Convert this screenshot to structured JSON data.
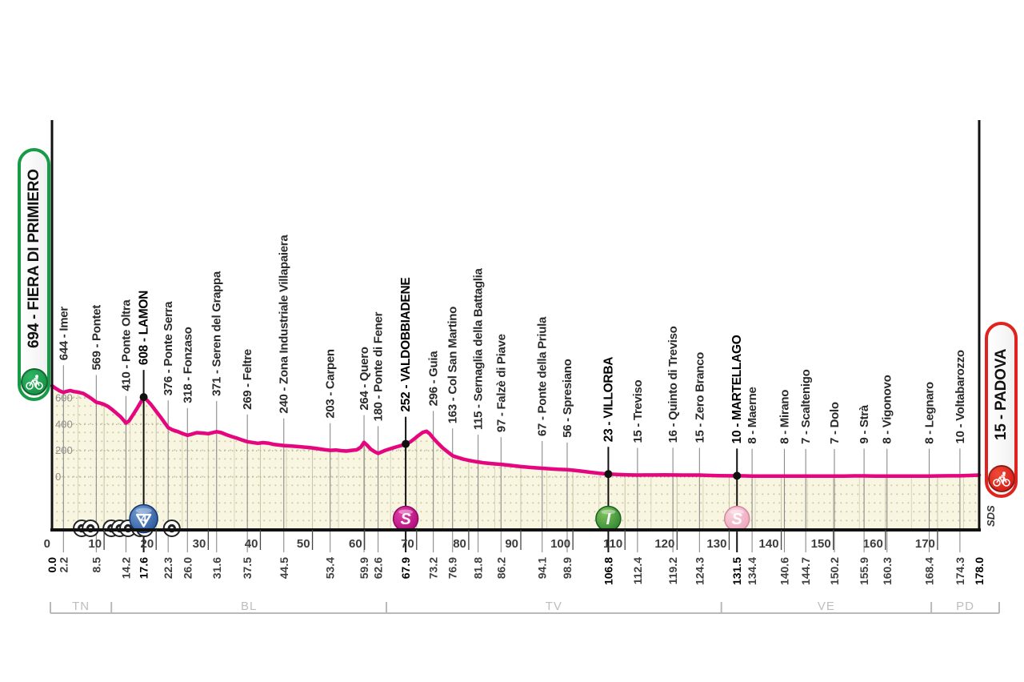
{
  "chart_data": {
    "type": "area",
    "description": "Cycling stage altimetry profile",
    "total_km": 178.0,
    "start": {
      "label": "694 - FIERA DI PRIMIERO",
      "elevation": 694,
      "name": "FIERA DI PRIMIERO"
    },
    "finish": {
      "label": "15 - PADOVA",
      "elevation": 15,
      "name": "PADOVA"
    },
    "signature": "SDS",
    "colors": {
      "profile_line": "#e5057e",
      "area_fill": "#f8f6e0",
      "start_accent": "#169b47",
      "finish_accent": "#e0231c",
      "axis": "#111111",
      "muted": "#8a8a8a"
    },
    "y_axis": {
      "unit": "m",
      "ticks": [
        0,
        200,
        400,
        600
      ]
    },
    "x_axis": {
      "unit": "km",
      "major_ticks": [
        0,
        10,
        20,
        30,
        40,
        50,
        60,
        70,
        80,
        90,
        100,
        110,
        120,
        130,
        140,
        150,
        160,
        170
      ]
    },
    "legend_position": "none",
    "grid": true,
    "waypoints": [
      {
        "km": 2.2,
        "elevation": 644,
        "name": "644 - Imer",
        "bold": false
      },
      {
        "km": 8.5,
        "elevation": 569,
        "name": "569 - Pontet",
        "bold": false
      },
      {
        "km": 14.2,
        "elevation": 410,
        "name": "410 - Ponte Oltra",
        "bold": false
      },
      {
        "km": 17.6,
        "elevation": 608,
        "name": "608 - LAMON",
        "bold": true,
        "badge": "climb-cat4"
      },
      {
        "km": 22.3,
        "elevation": 376,
        "name": "376 - Ponte Serra",
        "bold": false
      },
      {
        "km": 26.0,
        "elevation": 318,
        "name": "318 - Fonzaso",
        "bold": false
      },
      {
        "km": 31.6,
        "elevation": 371,
        "name": "371 - Seren del Grappa",
        "bold": false
      },
      {
        "km": 37.5,
        "elevation": 269,
        "name": "269 - Feltre",
        "bold": false
      },
      {
        "km": 44.5,
        "elevation": 240,
        "name": "240 - Zona Industriale Villapaiera",
        "bold": false
      },
      {
        "km": 53.4,
        "elevation": 203,
        "name": "203 - Carpen",
        "bold": false
      },
      {
        "km": 59.9,
        "elevation": 264,
        "name": "264 - Quero",
        "bold": false
      },
      {
        "km": 62.6,
        "elevation": 180,
        "name": "180 - Ponte di Fener",
        "bold": false
      },
      {
        "km": 67.9,
        "elevation": 252,
        "name": "252 - VALDOBBIADENE",
        "bold": true,
        "badge": "sprint-magenta"
      },
      {
        "km": 73.2,
        "elevation": 296,
        "name": "296 - Guia",
        "bold": false
      },
      {
        "km": 76.9,
        "elevation": 163,
        "name": "163 - Col San Martino",
        "bold": false
      },
      {
        "km": 81.8,
        "elevation": 115,
        "name": "115 - Sernaglia della Battaglia",
        "bold": false
      },
      {
        "km": 86.2,
        "elevation": 97,
        "name": "97 - Falzè di Piave",
        "bold": false
      },
      {
        "km": 94.1,
        "elevation": 67,
        "name": "67 - Ponte della Priula",
        "bold": false
      },
      {
        "km": 98.9,
        "elevation": 56,
        "name": "56 - Spresiano",
        "bold": false
      },
      {
        "km": 106.8,
        "elevation": 23,
        "name": "23 - VILLORBA",
        "bold": true,
        "badge": "intergiro-green"
      },
      {
        "km": 112.4,
        "elevation": 15,
        "name": "15 - Treviso",
        "bold": false
      },
      {
        "km": 119.2,
        "elevation": 16,
        "name": "16 - Quinto di Treviso",
        "bold": false
      },
      {
        "km": 124.3,
        "elevation": 15,
        "name": "15 - Zero Branco",
        "bold": false
      },
      {
        "km": 131.5,
        "elevation": 10,
        "name": "10 - MARTELLAGO",
        "bold": true,
        "badge": "sprint-pink"
      },
      {
        "km": 134.4,
        "elevation": 8,
        "name": "8 - Maerne",
        "bold": false
      },
      {
        "km": 140.6,
        "elevation": 8,
        "name": "8 - Mirano",
        "bold": false
      },
      {
        "km": 144.7,
        "elevation": 7,
        "name": "7 - Scaltenigo",
        "bold": false
      },
      {
        "km": 150.2,
        "elevation": 7,
        "name": "7 - Dolo",
        "bold": false
      },
      {
        "km": 155.9,
        "elevation": 9,
        "name": "9 - Strà",
        "bold": false
      },
      {
        "km": 160.3,
        "elevation": 8,
        "name": "8 - Vigonovo",
        "bold": false
      },
      {
        "km": 168.4,
        "elevation": 8,
        "name": "8 - Legnaro",
        "bold": false
      },
      {
        "km": 174.3,
        "elevation": 10,
        "name": "10 - Voltabarozzo",
        "bold": false
      }
    ],
    "km_labels": [
      {
        "km": 0.0,
        "bold": true
      },
      {
        "km": 2.2,
        "bold": false
      },
      {
        "km": 8.5,
        "bold": false
      },
      {
        "km": 14.2,
        "bold": false
      },
      {
        "km": 17.6,
        "bold": true
      },
      {
        "km": 22.3,
        "bold": false
      },
      {
        "km": 26.0,
        "bold": false
      },
      {
        "km": 31.6,
        "bold": false
      },
      {
        "km": 37.5,
        "bold": false
      },
      {
        "km": 44.5,
        "bold": false
      },
      {
        "km": 53.4,
        "bold": false
      },
      {
        "km": 59.9,
        "bold": false
      },
      {
        "km": 62.6,
        "bold": false
      },
      {
        "km": 67.9,
        "bold": true
      },
      {
        "km": 73.2,
        "bold": false
      },
      {
        "km": 76.9,
        "bold": false
      },
      {
        "km": 81.8,
        "bold": false
      },
      {
        "km": 86.2,
        "bold": false
      },
      {
        "km": 94.1,
        "bold": false
      },
      {
        "km": 98.9,
        "bold": false
      },
      {
        "km": 106.8,
        "bold": true
      },
      {
        "km": 112.4,
        "bold": false
      },
      {
        "km": 119.2,
        "bold": false
      },
      {
        "km": 124.3,
        "bold": false
      },
      {
        "km": 131.5,
        "bold": true
      },
      {
        "km": 134.4,
        "bold": false
      },
      {
        "km": 140.6,
        "bold": false
      },
      {
        "km": 144.7,
        "bold": false
      },
      {
        "km": 150.2,
        "bold": false
      },
      {
        "km": 155.9,
        "bold": false
      },
      {
        "km": 160.3,
        "bold": false
      },
      {
        "km": 168.4,
        "bold": false
      },
      {
        "km": 174.3,
        "bold": false
      },
      {
        "km": 178.0,
        "bold": true
      }
    ],
    "provinces": [
      {
        "label": "TN",
        "from_km": 0,
        "to_km": 11.4
      },
      {
        "label": "BL",
        "from_km": 11.4,
        "to_km": 64.2
      },
      {
        "label": "TV",
        "from_km": 64.2,
        "to_km": 128.5
      },
      {
        "label": "VE",
        "from_km": 128.5,
        "to_km": 168.8
      },
      {
        "label": "PD",
        "from_km": 168.8,
        "to_km": 178.0
      }
    ],
    "tunnels_km": [
      5.7,
      7.4,
      11.4,
      13.0,
      14.6,
      16.9,
      17.8,
      23.0
    ],
    "profile": [
      [
        0,
        694
      ],
      [
        0.8,
        672
      ],
      [
        1.5,
        655
      ],
      [
        2.2,
        644
      ],
      [
        2.8,
        652
      ],
      [
        3.5,
        658
      ],
      [
        4.2,
        650
      ],
      [
        5,
        646
      ],
      [
        6,
        636
      ],
      [
        7,
        612
      ],
      [
        7.8,
        590
      ],
      [
        8.5,
        569
      ],
      [
        9.3,
        562
      ],
      [
        10,
        552
      ],
      [
        10.8,
        536
      ],
      [
        11.5,
        515
      ],
      [
        12.3,
        488
      ],
      [
        13.2,
        458
      ],
      [
        14.2,
        410
      ],
      [
        14.8,
        428
      ],
      [
        15.5,
        470
      ],
      [
        16.3,
        520
      ],
      [
        17,
        568
      ],
      [
        17.6,
        608
      ],
      [
        18.3,
        582
      ],
      [
        19,
        552
      ],
      [
        20,
        500
      ],
      [
        21,
        448
      ],
      [
        22.3,
        376
      ],
      [
        23.2,
        358
      ],
      [
        24.2,
        345
      ],
      [
        25,
        332
      ],
      [
        26,
        318
      ],
      [
        26.8,
        326
      ],
      [
        27.8,
        338
      ],
      [
        29,
        334
      ],
      [
        30,
        330
      ],
      [
        31.6,
        345
      ],
      [
        32.5,
        338
      ],
      [
        33.5,
        322
      ],
      [
        34.5,
        308
      ],
      [
        35.5,
        296
      ],
      [
        36.5,
        282
      ],
      [
        37.5,
        269
      ],
      [
        38.5,
        263
      ],
      [
        39.5,
        257
      ],
      [
        40.5,
        262
      ],
      [
        41.5,
        258
      ],
      [
        42.5,
        249
      ],
      [
        43.5,
        244
      ],
      [
        44.5,
        240
      ],
      [
        46,
        236
      ],
      [
        47.5,
        231
      ],
      [
        49,
        226
      ],
      [
        50.5,
        219
      ],
      [
        52,
        210
      ],
      [
        53.4,
        203
      ],
      [
        54.5,
        206
      ],
      [
        55.5,
        201
      ],
      [
        56.5,
        198
      ],
      [
        57.5,
        203
      ],
      [
        58.5,
        207
      ],
      [
        59.3,
        228
      ],
      [
        59.9,
        264
      ],
      [
        60.5,
        242
      ],
      [
        61.2,
        212
      ],
      [
        62,
        192
      ],
      [
        62.6,
        180
      ],
      [
        63.3,
        192
      ],
      [
        64,
        203
      ],
      [
        65,
        216
      ],
      [
        66,
        228
      ],
      [
        67,
        240
      ],
      [
        67.9,
        252
      ],
      [
        68.8,
        268
      ],
      [
        69.6,
        292
      ],
      [
        70.4,
        318
      ],
      [
        71.2,
        340
      ],
      [
        71.9,
        348
      ],
      [
        72.5,
        330
      ],
      [
        73.2,
        296
      ],
      [
        74,
        262
      ],
      [
        75,
        222
      ],
      [
        76,
        190
      ],
      [
        76.9,
        163
      ],
      [
        78,
        148
      ],
      [
        79,
        136
      ],
      [
        80,
        127
      ],
      [
        81,
        120
      ],
      [
        81.8,
        115
      ],
      [
        83,
        108
      ],
      [
        84.5,
        102
      ],
      [
        86.2,
        97
      ],
      [
        88,
        89
      ],
      [
        90,
        80
      ],
      [
        92,
        73
      ],
      [
        94.1,
        67
      ],
      [
        95.5,
        63
      ],
      [
        97,
        59
      ],
      [
        98.9,
        56
      ],
      [
        100.5,
        50
      ],
      [
        102,
        43
      ],
      [
        103.5,
        36
      ],
      [
        105,
        29
      ],
      [
        106.8,
        23
      ],
      [
        108.5,
        20
      ],
      [
        110.5,
        17
      ],
      [
        112.4,
        15
      ],
      [
        114,
        16
      ],
      [
        116,
        16
      ],
      [
        117.5,
        17
      ],
      [
        119.2,
        16
      ],
      [
        121,
        15
      ],
      [
        122.5,
        15
      ],
      [
        124.3,
        15
      ],
      [
        126,
        13
      ],
      [
        128,
        11
      ],
      [
        130,
        10
      ],
      [
        131.5,
        10
      ],
      [
        133,
        9
      ],
      [
        134.4,
        8
      ],
      [
        136.5,
        8
      ],
      [
        138.5,
        8
      ],
      [
        140.6,
        8
      ],
      [
        142.5,
        7
      ],
      [
        144.7,
        7
      ],
      [
        146.5,
        7
      ],
      [
        148.5,
        7
      ],
      [
        150.2,
        7
      ],
      [
        152,
        8
      ],
      [
        154,
        9
      ],
      [
        155.9,
        9
      ],
      [
        158,
        8
      ],
      [
        160.3,
        8
      ],
      [
        162.5,
        8
      ],
      [
        164.5,
        8
      ],
      [
        166.5,
        8
      ],
      [
        168.4,
        8
      ],
      [
        170.5,
        9
      ],
      [
        172.5,
        10
      ],
      [
        174.3,
        10
      ],
      [
        176,
        12
      ],
      [
        178,
        15
      ]
    ]
  }
}
